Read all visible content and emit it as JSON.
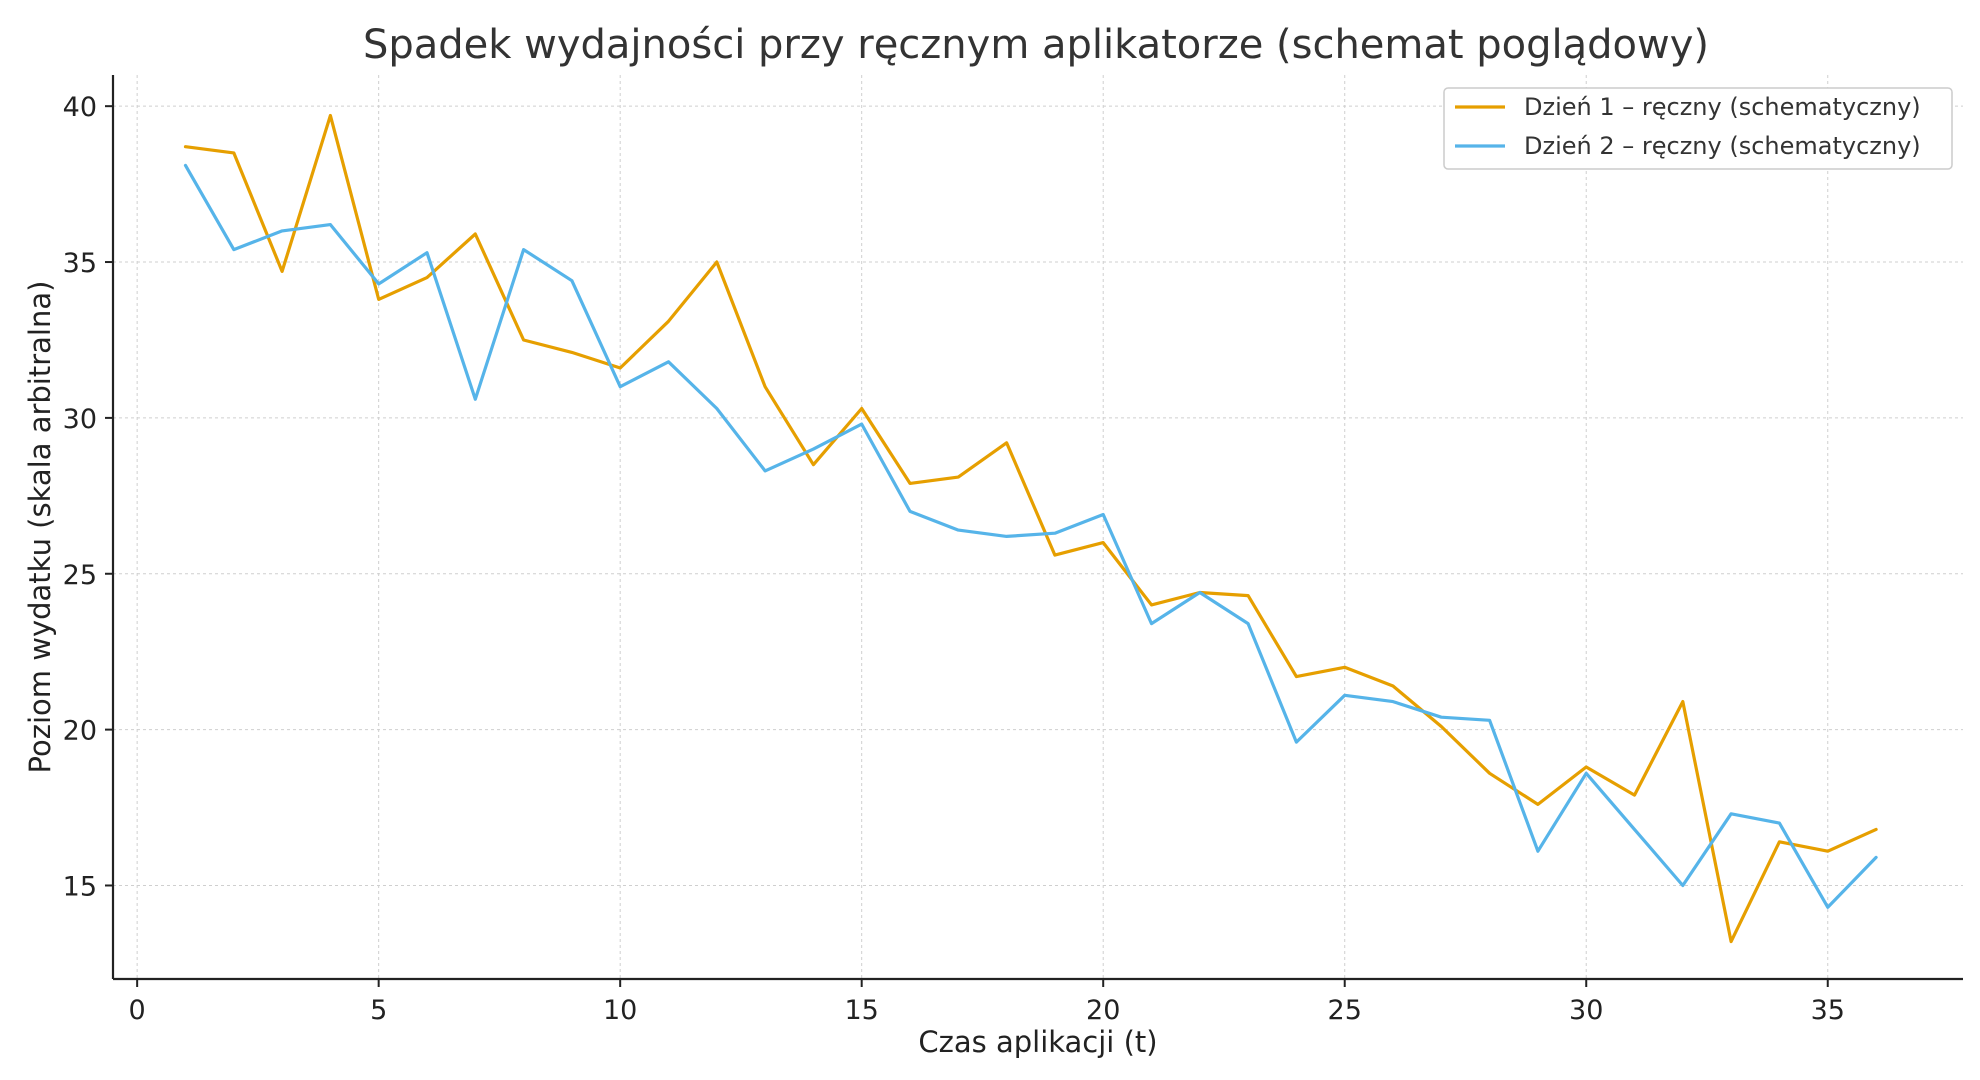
{
  "chart_data": {
    "type": "line",
    "title": "Spadek wydajności przy ręcznym aplikatorze (schemat poglądowy)",
    "xlabel": "Czas aplikacji (t)",
    "ylabel": "Poziom wydatku (skala arbitralna)",
    "xlim": [
      -0.5,
      37.8
    ],
    "ylim": [
      12,
      41
    ],
    "xticks": [
      "0",
      "5",
      "10",
      "15",
      "20",
      "25",
      "30",
      "35"
    ],
    "yticks": [
      "15",
      "20",
      "25",
      "30",
      "35",
      "40"
    ],
    "grid": true,
    "legend_position": "top-right",
    "x": [
      1,
      2,
      3,
      4,
      5,
      6,
      7,
      8,
      9,
      10,
      11,
      12,
      13,
      14,
      15,
      16,
      17,
      18,
      19,
      20,
      21,
      22,
      23,
      24,
      25,
      26,
      27,
      28,
      29,
      30,
      31,
      32,
      33,
      34,
      35,
      36
    ],
    "series": [
      {
        "name": "Dzień 1 – ręczny (schematyczny)",
        "color": "#E69F00",
        "values": [
          38.7,
          38.5,
          34.7,
          39.7,
          33.8,
          34.5,
          35.9,
          32.5,
          32.1,
          31.6,
          33.1,
          35.0,
          31.0,
          28.5,
          30.3,
          27.9,
          28.1,
          29.2,
          25.6,
          26.0,
          24.0,
          24.4,
          24.3,
          21.7,
          22.0,
          21.4,
          20.1,
          18.6,
          17.6,
          18.8,
          17.9,
          20.9,
          13.2,
          16.4,
          16.1,
          16.8
        ]
      },
      {
        "name": "Dzień 2 – ręczny (schematyczny)",
        "color": "#56B4E9",
        "values": [
          38.1,
          35.4,
          36.0,
          36.2,
          34.3,
          35.3,
          30.6,
          35.4,
          34.4,
          31.0,
          31.8,
          30.3,
          28.3,
          29.0,
          29.8,
          27.0,
          26.4,
          26.2,
          26.3,
          26.9,
          23.4,
          24.4,
          23.4,
          19.6,
          21.1,
          20.9,
          20.4,
          20.3,
          16.1,
          18.6,
          16.8,
          15.0,
          17.3,
          17.0,
          14.3,
          15.9
        ]
      }
    ]
  }
}
